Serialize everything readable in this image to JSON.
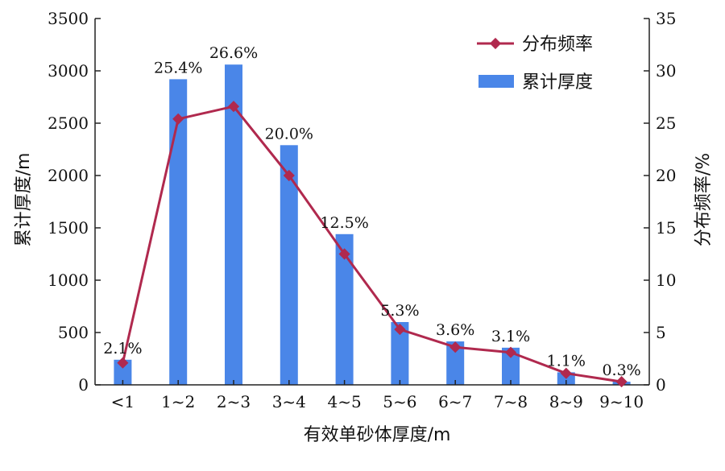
{
  "chart_data": {
    "type": "bar",
    "categories": [
      "<1",
      "1~2",
      "2~3",
      "3~4",
      "4~5",
      "5~6",
      "6~7",
      "7~8",
      "8~9",
      "9~10"
    ],
    "series": [
      {
        "name": "累计厚度",
        "type": "bar",
        "axis": "left",
        "values": [
          240,
          2920,
          3060,
          2290,
          1440,
          600,
          415,
          355,
          120,
          30
        ],
        "color": "#4a86e8"
      },
      {
        "name": "分布频率",
        "type": "line",
        "axis": "right",
        "values": [
          2.1,
          25.4,
          26.6,
          20.0,
          12.5,
          5.3,
          3.6,
          3.1,
          1.1,
          0.3
        ],
        "labels": [
          "2.1%",
          "25.4%",
          "26.6%",
          "20.0%",
          "12.5%",
          "5.3%",
          "3.6%",
          "3.1%",
          "1.1%",
          "0.3%"
        ],
        "color": "#b0294e"
      }
    ],
    "title": "",
    "xlabel": "有效单砂体厚度/m",
    "ylabel_left": "累计厚度/m",
    "ylabel_right": "分布频率/%",
    "ylim_left": [
      0,
      3500
    ],
    "ylim_right": [
      0,
      35
    ],
    "yticks_left": [
      "0",
      "500",
      "1000",
      "1500",
      "2000",
      "2500",
      "3000",
      "3500"
    ],
    "yticks_right": [
      "0",
      "5",
      "10",
      "15",
      "20",
      "25",
      "30",
      "35"
    ],
    "legend_placement": "top-right",
    "grid": false
  }
}
